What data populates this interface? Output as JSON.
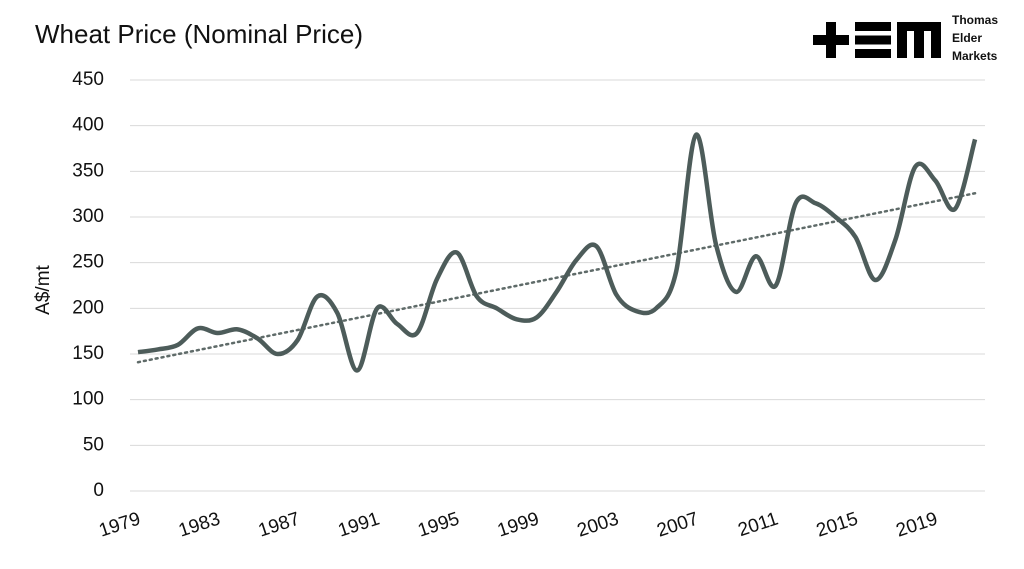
{
  "chart_data": {
    "type": "line",
    "title": "Wheat Price (Nominal Price)",
    "y_label": "A$/mt",
    "logo_text": [
      "Thomas",
      "Elder",
      "Markets"
    ],
    "categories": [
      "1979",
      null,
      null,
      null,
      "1983",
      null,
      null,
      null,
      "1987",
      null,
      null,
      null,
      "1991",
      null,
      null,
      null,
      "1995",
      null,
      null,
      null,
      "1999",
      null,
      null,
      null,
      "2003",
      null,
      null,
      null,
      "2007",
      null,
      null,
      null,
      "2011",
      null,
      null,
      null,
      "2015",
      null,
      null,
      null,
      "2019",
      null,
      null
    ],
    "series": [
      {
        "name": "Wheat Price",
        "color": "#4d5c5a",
        "values": [
          152,
          155,
          160,
          178,
          173,
          177,
          167,
          150,
          165,
          213,
          195,
          132,
          200,
          183,
          173,
          232,
          261,
          213,
          200,
          188,
          190,
          218,
          253,
          268,
          215,
          197,
          200,
          240,
          390,
          270,
          218,
          257,
          225,
          315,
          315,
          300,
          278,
          231,
          275,
          355,
          340,
          309,
          385
        ]
      }
    ],
    "trendline": {
      "start": 141,
      "end": 326,
      "color": "#5f6b69",
      "style": "dotted"
    },
    "ylim": [
      0,
      450
    ],
    "yticks": [
      0,
      50,
      100,
      150,
      200,
      250,
      300,
      350,
      400,
      450
    ],
    "grid": true
  }
}
